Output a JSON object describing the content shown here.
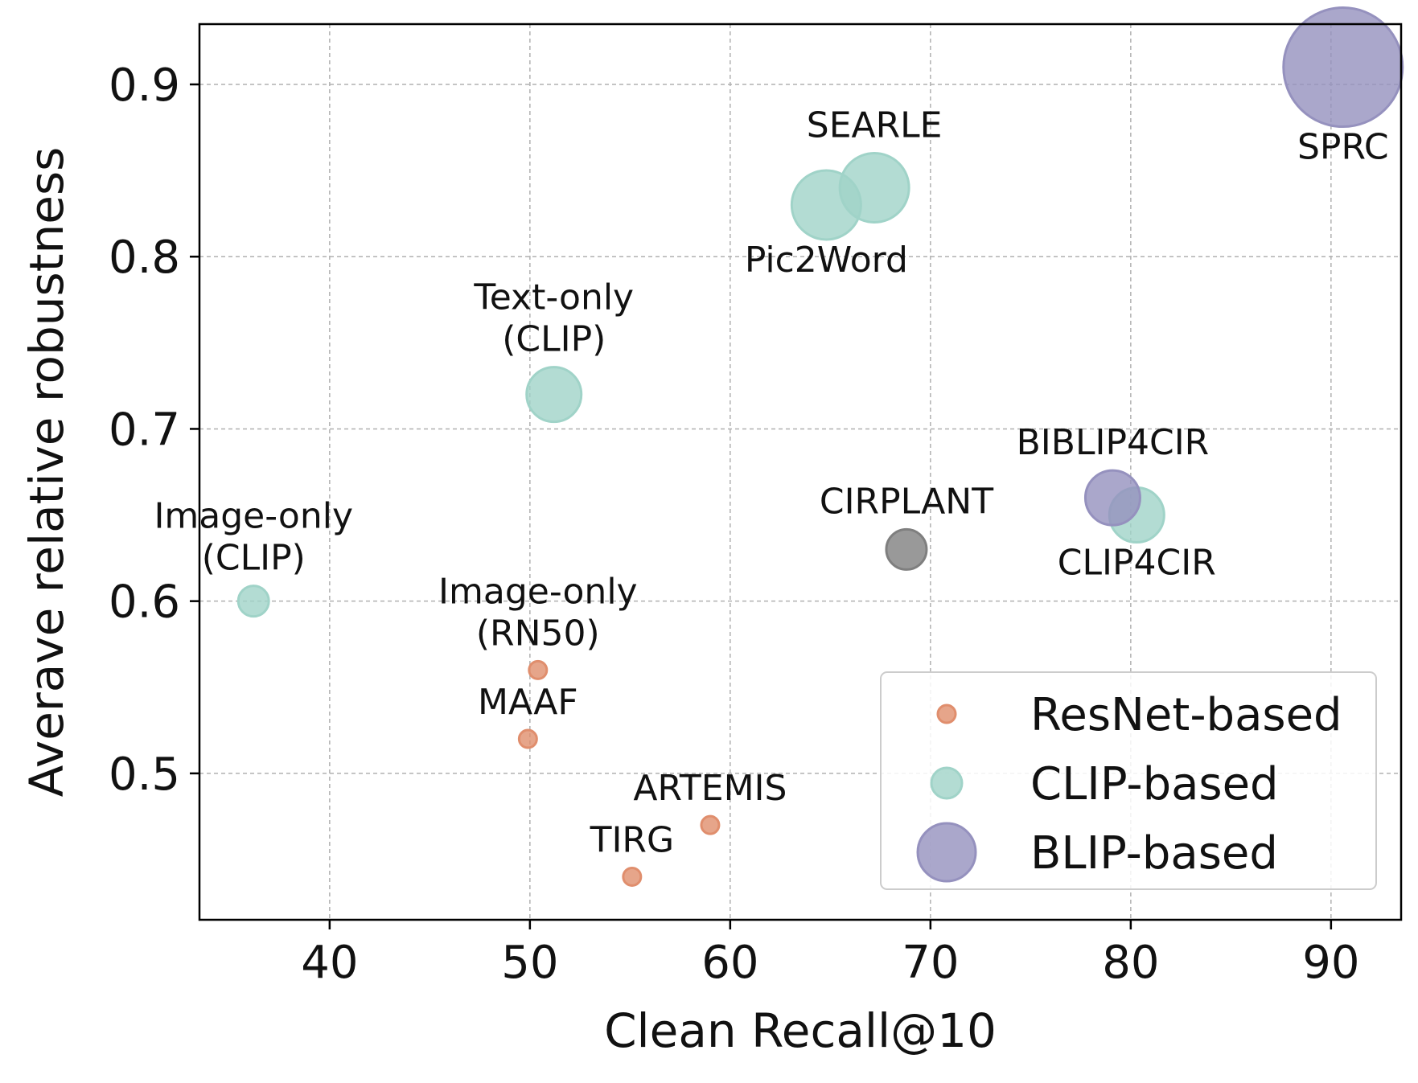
{
  "chart_data": {
    "type": "scatter",
    "title": "",
    "xlabel": "Clean Recall@10",
    "ylabel": "Averave relative robustness",
    "xlim": [
      33.5,
      93.5
    ],
    "ylim": [
      0.415,
      0.935
    ],
    "xticks": [
      40,
      50,
      60,
      70,
      80,
      90
    ],
    "yticks": [
      0.5,
      0.6,
      0.7,
      0.8,
      0.9
    ],
    "xtick_labels": [
      "40",
      "50",
      "60",
      "70",
      "80",
      "90"
    ],
    "ytick_labels": [
      "0.5",
      "0.6",
      "0.7",
      "0.8",
      "0.9"
    ],
    "grid": true,
    "legend_position": "lower-right",
    "series": [
      {
        "name": "ResNet-based",
        "color": "#e08e6d"
      },
      {
        "name": "CLIP-based",
        "color": "#a0d3c8"
      },
      {
        "name": "BLIP-based",
        "color": "#9591be"
      }
    ],
    "points": [
      {
        "label": "Image-only (CLIP)",
        "lines": [
          "Image-only",
          "(CLIP)"
        ],
        "x": 36.2,
        "y": 0.6,
        "group": "CLIP-based",
        "size": "small",
        "label_pos": "above"
      },
      {
        "label": "Image-only (RN50)",
        "lines": [
          "Image-only",
          "(RN50)"
        ],
        "x": 50.4,
        "y": 0.56,
        "group": "ResNet-based",
        "size": "tiny",
        "label_pos": "above"
      },
      {
        "label": "MAAF",
        "lines": [
          "MAAF"
        ],
        "x": 49.9,
        "y": 0.52,
        "group": "ResNet-based",
        "size": "tiny",
        "label_pos": "above"
      },
      {
        "label": "TIRG",
        "lines": [
          "TIRG"
        ],
        "x": 55.1,
        "y": 0.44,
        "group": "ResNet-based",
        "size": "tiny",
        "label_pos": "above"
      },
      {
        "label": "ARTEMIS",
        "lines": [
          "ARTEMIS"
        ],
        "x": 59.0,
        "y": 0.47,
        "group": "ResNet-based",
        "size": "tiny",
        "label_pos": "above"
      },
      {
        "label": "Text-only (CLIP)",
        "lines": [
          "Text-only",
          "(CLIP)"
        ],
        "x": 51.2,
        "y": 0.72,
        "group": "CLIP-based",
        "size": "medium",
        "label_pos": "above"
      },
      {
        "label": "Pic2Word",
        "lines": [
          "Pic2Word"
        ],
        "x": 64.8,
        "y": 0.83,
        "group": "CLIP-based",
        "size": "large",
        "label_pos": "below"
      },
      {
        "label": "SEARLE",
        "lines": [
          "SEARLE"
        ],
        "x": 67.2,
        "y": 0.84,
        "group": "CLIP-based",
        "size": "large",
        "label_pos": "above"
      },
      {
        "label": "CIRPLANT",
        "lines": [
          "CIRPLANT"
        ],
        "x": 68.8,
        "y": 0.63,
        "group": "Other",
        "color": "#7f7f7f",
        "size": "small-medium",
        "label_pos": "above"
      },
      {
        "label": "CLIP4CIR",
        "lines": [
          "CLIP4CIR"
        ],
        "x": 80.3,
        "y": 0.65,
        "group": "CLIP-based",
        "size": "medium",
        "label_pos": "below"
      },
      {
        "label": "BIBLIP4CIR",
        "lines": [
          "BIBLIP4CIR"
        ],
        "x": 79.1,
        "y": 0.66,
        "group": "BLIP-based",
        "size": "medium",
        "label_pos": "above"
      },
      {
        "label": "SPRC",
        "lines": [
          "SPRC"
        ],
        "x": 90.6,
        "y": 0.91,
        "group": "BLIP-based",
        "size": "xlarge",
        "label_pos": "below"
      }
    ]
  }
}
